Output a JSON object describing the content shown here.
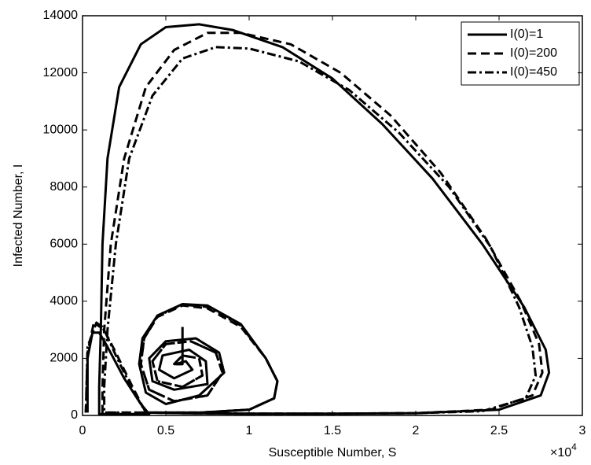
{
  "chart_data": {
    "type": "line",
    "x_label": "Susceptible Number, S",
    "y_label": "Infected Number, I",
    "x_multiplier": "×10",
    "x_multiplier_exponent": "4",
    "xlim": [
      0,
      3
    ],
    "xticks": [
      0,
      0.5,
      1,
      1.5,
      2,
      2.5,
      3
    ],
    "ylim": [
      0,
      14000
    ],
    "yticks": [
      0,
      2000,
      4000,
      6000,
      8000,
      10000,
      12000,
      14000
    ],
    "legend": "upper right",
    "series": [
      {
        "name": "I(0)=1",
        "color": "#000000",
        "dash": "solid",
        "x": [
          0.03,
          0.03,
          0.06,
          0.1,
          0.15,
          0.25,
          0.35,
          0.4,
          0.1,
          0.1,
          0.11,
          0.12,
          0.15,
          0.22,
          0.35,
          0.5,
          0.7,
          0.9,
          1.2,
          1.5,
          1.8,
          2.1,
          2.4,
          2.65,
          2.78,
          2.8,
          2.75,
          2.5,
          2.0,
          1.5,
          1.0,
          0.6,
          0.4,
          0.7,
          1.0,
          1.15,
          1.17,
          1.1,
          0.95,
          0.75,
          0.6,
          0.45,
          0.36,
          0.34,
          0.38,
          0.5,
          0.7,
          0.85,
          0.82,
          0.68,
          0.5,
          0.4,
          0.42,
          0.55,
          0.75,
          0.74,
          0.64,
          0.48,
          0.46,
          0.55,
          0.66,
          0.62,
          0.56,
          0.6,
          0.6
        ],
        "values": [
          100,
          2000,
          2900,
          2900,
          2400,
          1300,
          400,
          50,
          50,
          1000,
          3000,
          6000,
          9000,
          11500,
          13000,
          13600,
          13700,
          13500,
          12900,
          11800,
          10200,
          8300,
          6000,
          3800,
          2300,
          1500,
          700,
          200,
          80,
          60,
          60,
          80,
          100,
          100,
          200,
          600,
          1200,
          2000,
          3200,
          3850,
          3900,
          3500,
          2700,
          1800,
          800,
          400,
          700,
          1500,
          2200,
          2700,
          2600,
          2000,
          1200,
          900,
          1100,
          1900,
          2300,
          2100,
          1600,
          1300,
          1600,
          1900,
          1800,
          1800,
          3100
        ]
      },
      {
        "name": "I(0)=200",
        "color": "#000000",
        "dash": "dashed",
        "x": [
          0.02,
          0.03,
          0.07,
          0.12,
          0.2,
          0.3,
          0.38,
          0.12,
          0.12,
          0.13,
          0.17,
          0.25,
          0.38,
          0.55,
          0.75,
          0.95,
          1.25,
          1.55,
          1.85,
          2.15,
          2.42,
          2.63,
          2.74,
          2.76,
          2.7,
          2.45,
          2.0,
          1.5,
          1.0,
          0.6,
          0.4,
          0.7,
          1.0,
          1.15,
          1.17,
          1.1,
          0.95,
          0.75,
          0.6,
          0.45,
          0.37,
          0.35,
          0.4,
          0.55,
          0.75,
          0.84,
          0.8,
          0.65,
          0.5,
          0.42,
          0.45,
          0.6,
          0.72,
          0.7,
          0.6,
          0.55,
          0.6
        ],
        "values": [
          100,
          2200,
          3300,
          3100,
          2200,
          1000,
          100,
          100,
          1000,
          3000,
          6000,
          9000,
          11500,
          12800,
          13400,
          13400,
          13000,
          12000,
          10500,
          8500,
          6200,
          4000,
          2500,
          1500,
          700,
          200,
          80,
          60,
          60,
          80,
          100,
          100,
          200,
          600,
          1200,
          2000,
          3100,
          3750,
          3850,
          3450,
          2700,
          1800,
          900,
          500,
          700,
          1500,
          2200,
          2600,
          2500,
          1900,
          1200,
          1000,
          1400,
          2000,
          2100,
          1800,
          1800
        ]
      },
      {
        "name": "I(0)=450",
        "color": "#000000",
        "dash": "dashdot",
        "x": [
          0.02,
          0.03,
          0.08,
          0.13,
          0.2,
          0.3,
          0.38,
          0.13,
          0.13,
          0.15,
          0.2,
          0.28,
          0.42,
          0.6,
          0.8,
          1.0,
          1.3,
          1.6,
          1.9,
          2.2,
          2.45,
          2.62,
          2.7,
          2.72,
          2.66,
          2.4,
          2.0,
          1.5,
          1.0,
          0.6,
          0.4,
          0.7,
          1.0,
          1.15,
          1.17,
          1.1,
          0.95,
          0.75,
          0.6,
          0.45,
          0.37,
          0.35,
          0.4,
          0.55,
          0.75,
          0.84,
          0.8,
          0.65,
          0.5,
          0.42,
          0.45,
          0.6,
          0.72,
          0.7,
          0.6,
          0.55,
          0.6
        ],
        "values": [
          100,
          2400,
          3200,
          3000,
          2100,
          900,
          100,
          100,
          1000,
          3000,
          6000,
          9000,
          11200,
          12500,
          12900,
          12850,
          12400,
          11400,
          9900,
          8000,
          5900,
          3800,
          2400,
          1400,
          600,
          150,
          80,
          60,
          60,
          80,
          100,
          100,
          200,
          600,
          1200,
          2000,
          3150,
          3800,
          3880,
          3480,
          2700,
          1800,
          900,
          500,
          700,
          1500,
          2200,
          2600,
          2500,
          1900,
          1200,
          1000,
          1400,
          2000,
          2100,
          1800,
          1800
        ]
      }
    ]
  }
}
